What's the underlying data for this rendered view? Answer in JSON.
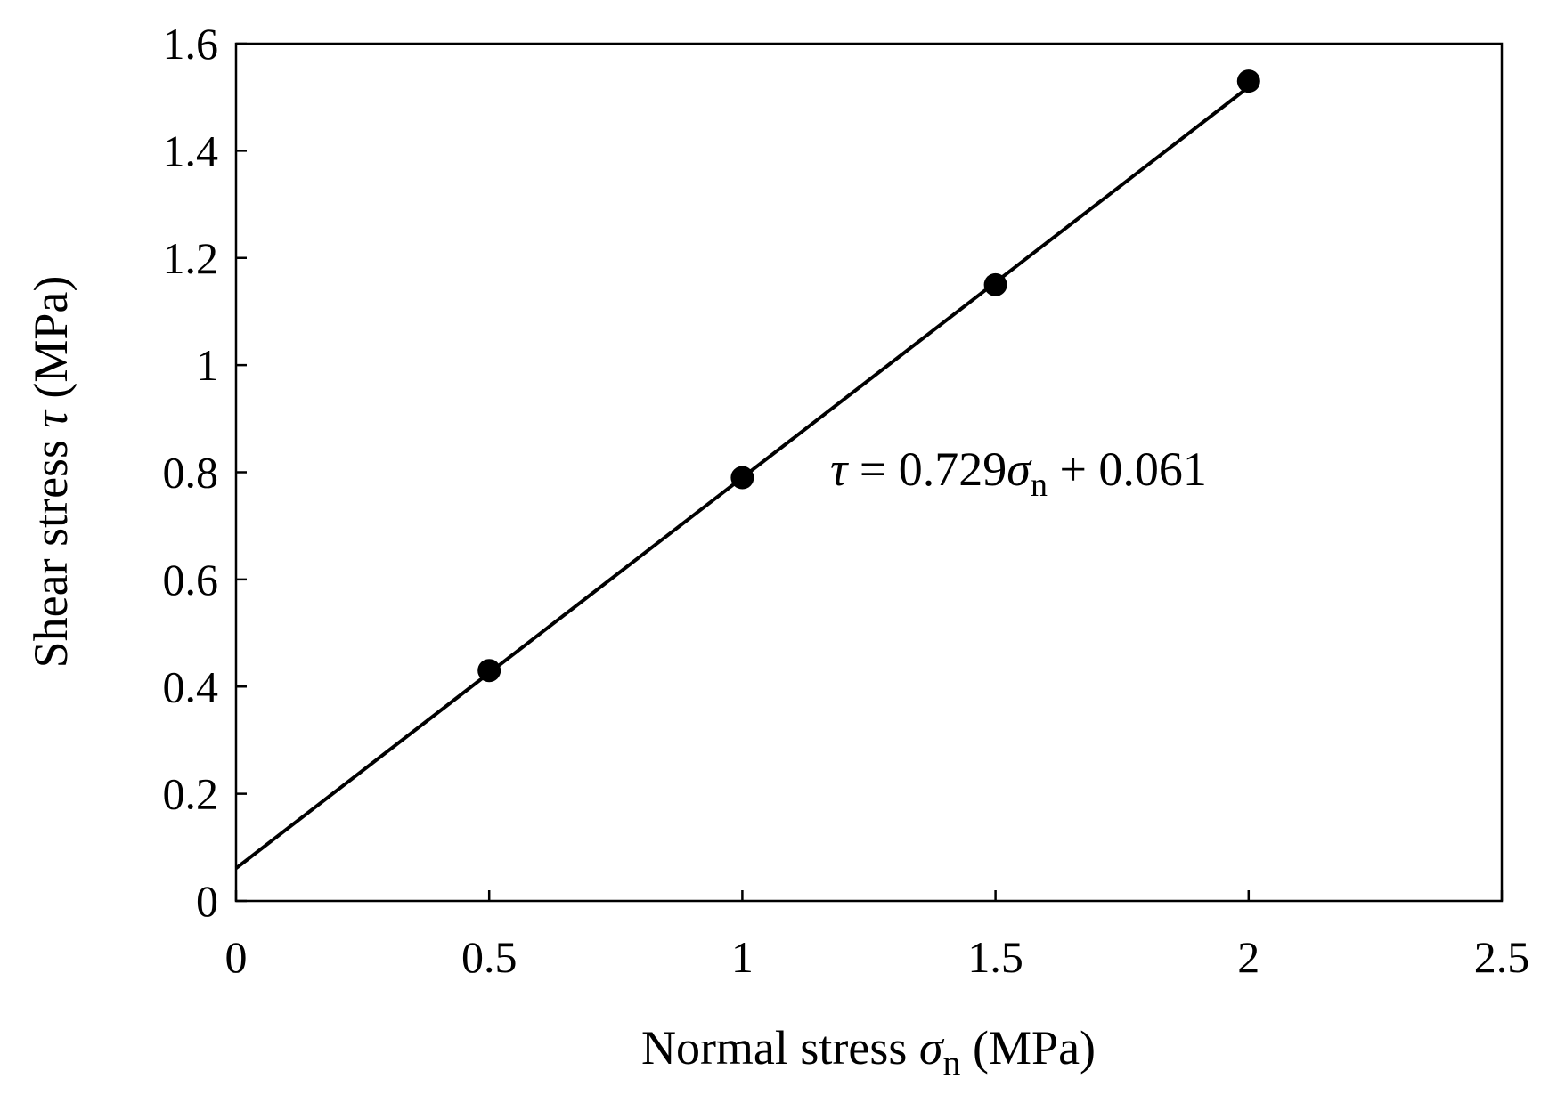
{
  "chart_data": {
    "type": "scatter",
    "title": "",
    "xlabel": {
      "main": "Normal stress ",
      "symbol": "σ",
      "subscript": "n",
      "unit": " (MPa)"
    },
    "ylabel": {
      "main": "Shear stress ",
      "symbol": "τ",
      "unit": " (MPa)"
    },
    "xlim": [
      0,
      2.5
    ],
    "ylim": [
      0,
      1.6
    ],
    "x_ticks": [
      0,
      0.5,
      1,
      1.5,
      2,
      2.5
    ],
    "x_tick_labels": [
      "0",
      "0.5",
      "1",
      "1.5",
      "2",
      "2.5"
    ],
    "y_ticks": [
      0,
      0.2,
      0.4,
      0.6,
      0.8,
      1,
      1.2,
      1.4,
      1.6
    ],
    "y_tick_labels": [
      "0",
      "0.2",
      "0.4",
      "0.6",
      "0.8",
      "1",
      "1.2",
      "1.4",
      "1.6"
    ],
    "grid": false,
    "series": [
      {
        "name": "data",
        "x": [
          0.5,
          1.0,
          1.5,
          2.0
        ],
        "y": [
          0.43,
          0.79,
          1.15,
          1.53
        ]
      }
    ],
    "fit": {
      "slope": 0.729,
      "intercept": 0.061,
      "x_range": [
        0,
        2.0
      ]
    },
    "annotation": {
      "tau": "τ",
      "eq_part1": " = 0.729",
      "sigma": "σ",
      "sub": "n",
      "eq_part2": " + 0.061"
    },
    "colors": {
      "line": "#000000",
      "marker": "#000000",
      "axes": "#000000"
    }
  }
}
